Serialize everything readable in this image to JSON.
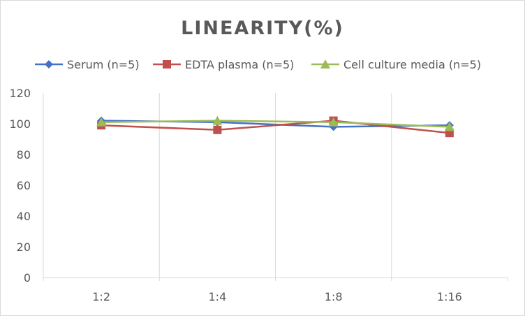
{
  "chart_data": {
    "type": "line",
    "title": "LINEARITY(%)",
    "categories": [
      "1:2",
      "1:4",
      "1:8",
      "1:16"
    ],
    "ylim": [
      0,
      120
    ],
    "yticks": [
      0,
      20,
      40,
      60,
      80,
      100,
      120
    ],
    "xlabel": "",
    "ylabel": "",
    "grid": "vertical",
    "legend_position": "top",
    "series": [
      {
        "name": "Serum (n=5)",
        "values": [
          102,
          101,
          98,
          99
        ],
        "color": "#4472c4",
        "marker": "diamond"
      },
      {
        "name": "EDTA plasma (n=5)",
        "values": [
          99,
          96,
          102,
          94
        ],
        "color": "#c0504d",
        "marker": "square"
      },
      {
        "name": "Cell culture media (n=5)",
        "values": [
          101,
          102,
          101,
          98
        ],
        "color": "#9bbb59",
        "marker": "triangle"
      }
    ]
  }
}
